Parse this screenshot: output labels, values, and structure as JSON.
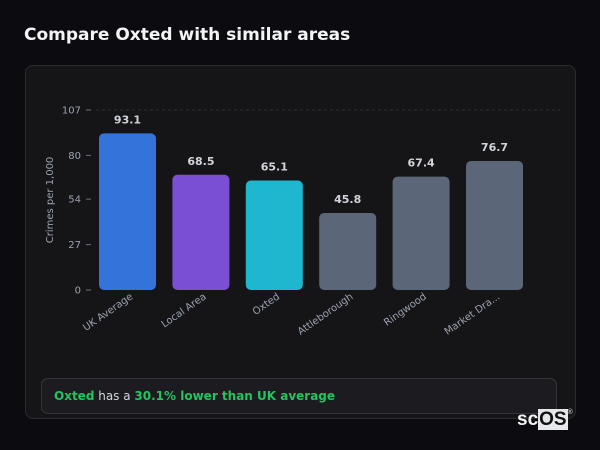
{
  "title": "Compare Oxted with similar areas",
  "chart_data": {
    "type": "bar",
    "categories": [
      "UK Average",
      "Local Area",
      "Oxted",
      "Attleborough",
      "Ringwood",
      "Market Dra..."
    ],
    "values": [
      93.1,
      68.5,
      65.1,
      45.8,
      67.4,
      76.7
    ],
    "colors": [
      "#3274d9",
      "#7b4fd4",
      "#1fb6cf",
      "#5b6678",
      "#5b6678",
      "#5b6678"
    ],
    "value_labels": [
      "93.1",
      "68.5",
      "65.1",
      "45.8",
      "67.4",
      "76.7"
    ],
    "ylabel": "Crimes per 1,000",
    "xlabel": "",
    "ylim": [
      0,
      107
    ],
    "yticks": [
      0,
      27,
      54,
      80,
      107
    ],
    "grid": "top dashed line only"
  },
  "summary": {
    "place": "Oxted",
    "middle": " has a ",
    "highlight": "30.1% lower than UK average"
  },
  "watermark": {
    "text_a": "sc",
    "text_b": "OS",
    "mark": "®"
  }
}
